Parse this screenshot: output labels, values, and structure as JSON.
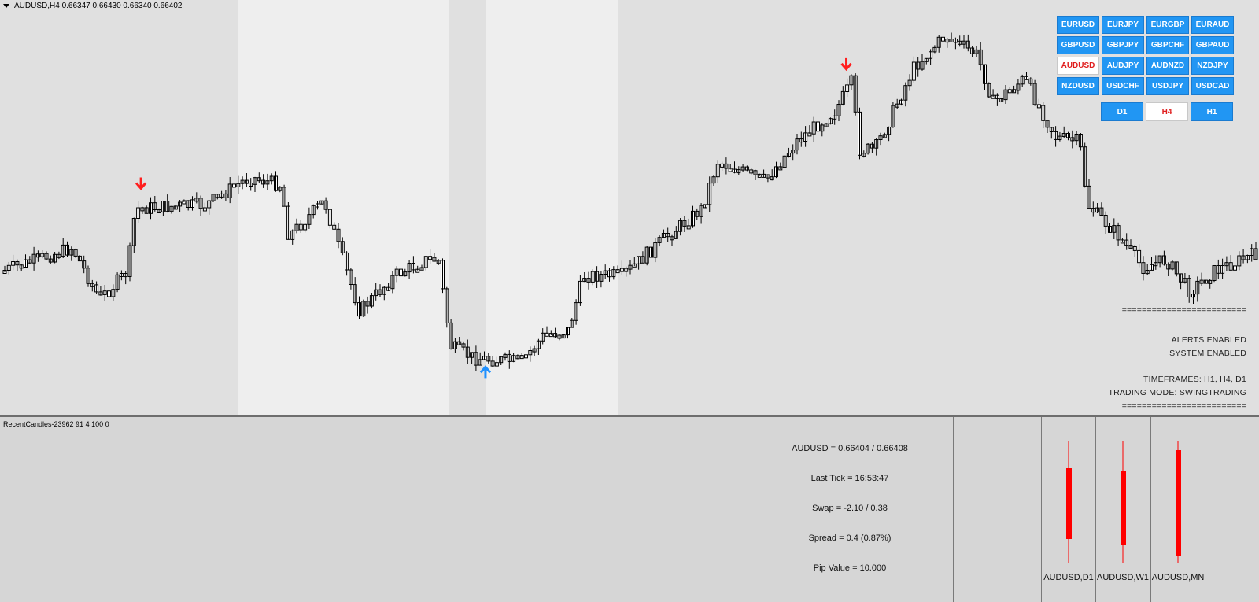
{
  "chart": {
    "symbol_line": "AUDUSD,H4  0.66347 0.66430 0.66340 0.66402",
    "colors": {
      "bg": "#e6e6e6",
      "session_light": "#eeeeee",
      "session_mid": "#e0e0e0",
      "candle_stroke": "#000000",
      "buy_arrow": "#1e90ff",
      "sell_arrow": "#ff1e1e"
    },
    "arrows": [
      {
        "type": "sell",
        "bar": 76
      },
      {
        "type": "buy",
        "bar": 266
      },
      {
        "type": "sell",
        "bar": 465
      }
    ]
  },
  "symbols": [
    "EURUSD",
    "EURJPY",
    "EURGBP",
    "EURAUD",
    "GBPUSD",
    "GBPJPY",
    "GBPCHF",
    "GBPAUD",
    "AUDUSD",
    "AUDJPY",
    "AUDNZD",
    "NZDJPY",
    "NZDUSD",
    "USDCHF",
    "USDJPY",
    "USDCAD"
  ],
  "active_symbol": "AUDUSD",
  "timeframes": [
    "D1",
    "H4",
    "H1"
  ],
  "active_timeframe": "H4",
  "status": {
    "sep": "=========================",
    "alerts": "ALERTS ENABLED",
    "system": "SYSTEM ENABLED",
    "timeframes": "TIMEFRAMES: H1, H4, D1",
    "mode": "TRADING MODE: SWINGTRADING"
  },
  "indicator": {
    "title": "RecentCandles-23962 91 4 100 0",
    "quote": "AUDUSD = 0.66404 / 0.66408",
    "last_tick": "Last Tick = 16:53:47",
    "swap": "Swap = -2.10 / 0.38",
    "spread": "Spread = 0.4  (0.87%)",
    "pip_value": "Pip Value = 10.000",
    "mini_candles": [
      {
        "label": "AUDUSD,D1",
        "color": "#ff0000"
      },
      {
        "label": "AUDUSD,W1",
        "color": "#ff0000"
      },
      {
        "label": "AUDUSD,MN",
        "color": "#ff0000"
      }
    ]
  }
}
